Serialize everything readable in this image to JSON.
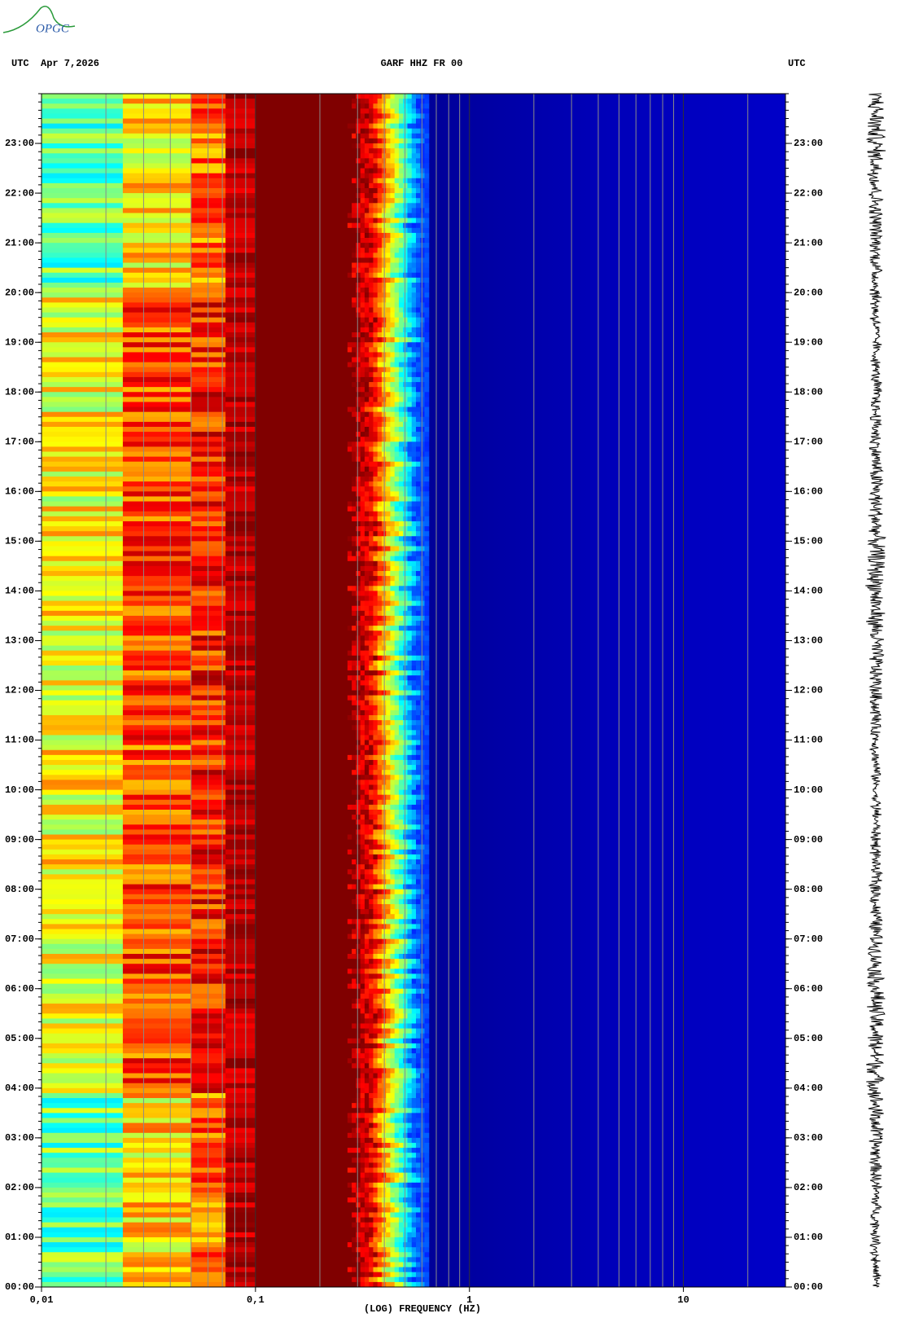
{
  "logo": "OPGC",
  "chart_data": {
    "type": "spectrogram",
    "title": "GARF HHZ FR 00",
    "left_label": "UTC",
    "date": "Apr 7,2026",
    "right_label": "UTC",
    "x_label": "(LOG) FREQUENCY (HZ)",
    "x_scale": "log",
    "xlim": [
      0.01,
      30
    ],
    "xticks": [
      {
        "value": 0.01,
        "label": "0,01"
      },
      {
        "value": 0.1,
        "label": "0,1"
      },
      1,
      10
    ],
    "ylim": [
      0,
      24
    ],
    "yticks": [
      {
        "value": 0,
        "label": "00:00"
      },
      {
        "value": 1,
        "label": "01:00"
      },
      {
        "value": 2,
        "label": "02:00"
      },
      {
        "value": 3,
        "label": "03:00"
      },
      {
        "value": 4,
        "label": "04:00"
      },
      {
        "value": 5,
        "label": "05:00"
      },
      {
        "value": 6,
        "label": "06:00"
      },
      {
        "value": 7,
        "label": "07:00"
      },
      {
        "value": 8,
        "label": "08:00"
      },
      {
        "value": 9,
        "label": "09:00"
      },
      {
        "value": 10,
        "label": "10:00"
      },
      {
        "value": 11,
        "label": "11:00"
      },
      {
        "value": 12,
        "label": "12:00"
      },
      {
        "value": 13,
        "label": "13:00"
      },
      {
        "value": 14,
        "label": "14:00"
      },
      {
        "value": 15,
        "label": "15:00"
      },
      {
        "value": 16,
        "label": "16:00"
      },
      {
        "value": 17,
        "label": "17:00"
      },
      {
        "value": 18,
        "label": "18:00"
      },
      {
        "value": 19,
        "label": "19:00"
      },
      {
        "value": 20,
        "label": "20:00"
      },
      {
        "value": 21,
        "label": "21:00"
      },
      {
        "value": 22,
        "label": "22:00"
      },
      {
        "value": 23,
        "label": "23:00"
      }
    ],
    "grid": true
  }
}
